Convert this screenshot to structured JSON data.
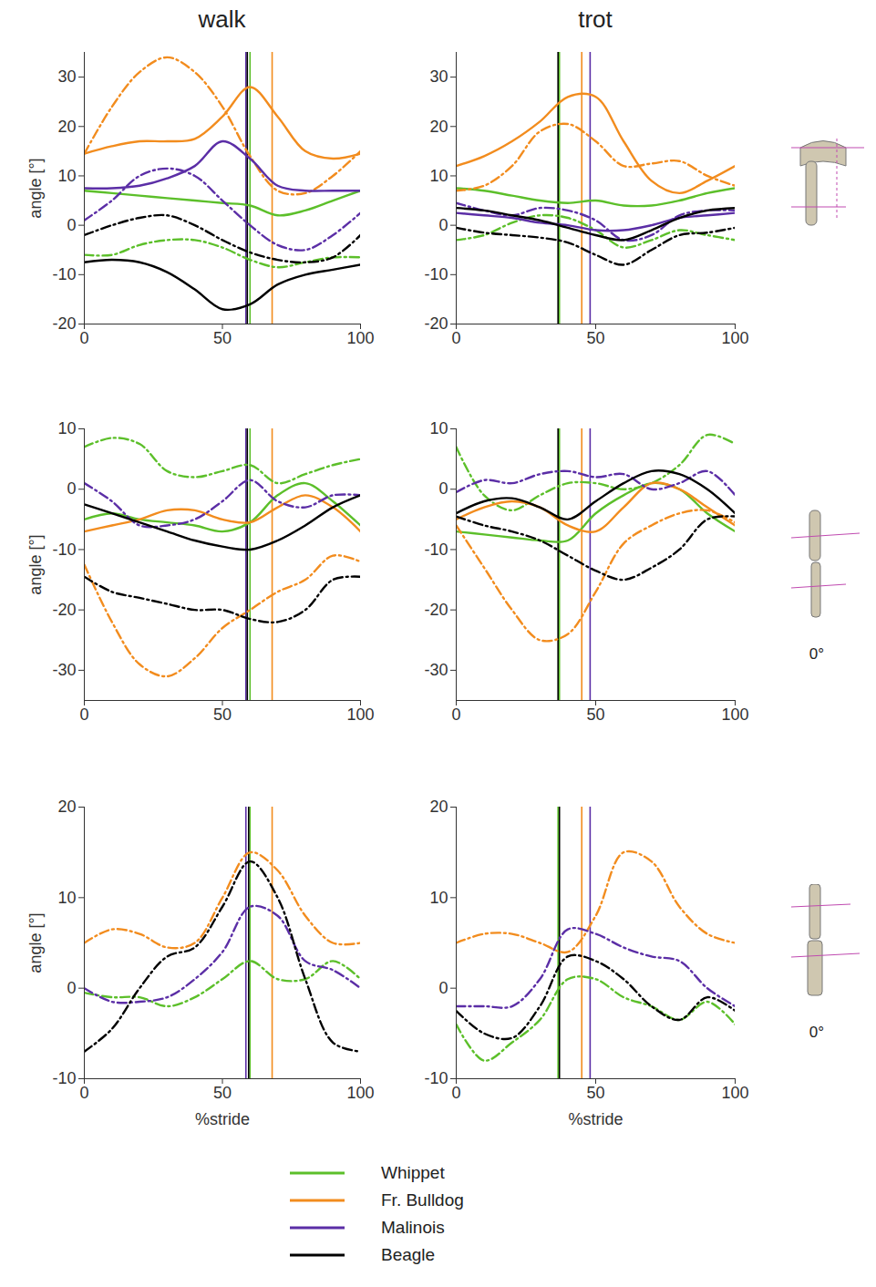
{
  "chart_data": [
    {
      "type": "line",
      "title": "walk",
      "y_label": "angle [°]",
      "legend": "bottom",
      "xlim": [
        0,
        100
      ],
      "xticks": [
        0,
        50,
        100
      ],
      "ylim": [
        -20,
        35
      ],
      "yticks": [
        -20,
        -10,
        0,
        10,
        20,
        30
      ],
      "x": [
        0,
        10,
        20,
        30,
        40,
        50,
        60,
        70,
        80,
        90,
        100
      ],
      "series": [
        {
          "name": "Whippet",
          "color": "#5cbf2a",
          "line_style": "solid",
          "values": [
            7,
            6.5,
            6,
            5.5,
            5,
            4.5,
            4,
            2,
            3,
            5,
            7
          ]
        },
        {
          "name": "Whippet",
          "color": "#5cbf2a",
          "line_style": "dashdot",
          "values": [
            -6,
            -6,
            -4,
            -3,
            -3,
            -4.5,
            -7,
            -8.5,
            -7.5,
            -6.5,
            -6.5
          ]
        },
        {
          "name": "Fr. Bulldog",
          "color": "#f28c1e",
          "line_style": "solid",
          "values": [
            14.5,
            16,
            17,
            17,
            17.5,
            22,
            28,
            22,
            15,
            13.5,
            14.5
          ]
        },
        {
          "name": "Fr. Bulldog",
          "color": "#f28c1e",
          "line_style": "dashdot",
          "values": [
            14.5,
            24,
            31,
            34,
            31,
            24,
            14,
            7,
            6.5,
            10,
            15
          ]
        },
        {
          "name": "Malinois",
          "color": "#5b2ea6",
          "line_style": "solid",
          "values": [
            7.5,
            7.5,
            8,
            9.5,
            12,
            17,
            13.5,
            8,
            7,
            7,
            7
          ]
        },
        {
          "name": "Malinois",
          "color": "#5b2ea6",
          "line_style": "dashdot",
          "values": [
            1,
            5,
            10,
            11.5,
            10,
            5,
            0,
            -4,
            -5,
            -2,
            2.5
          ]
        },
        {
          "name": "Beagle",
          "color": "#000000",
          "line_style": "solid",
          "values": [
            -7.5,
            -7,
            -7.5,
            -9.5,
            -13,
            -17,
            -16,
            -12,
            -10,
            -9,
            -8
          ]
        },
        {
          "name": "Beagle",
          "color": "#000000",
          "line_style": "dashdot",
          "values": [
            -2,
            0,
            1.5,
            2,
            0,
            -3,
            -5.5,
            -7,
            -7.5,
            -6.5,
            -2
          ]
        }
      ],
      "vlines": [
        {
          "name": "Whippet",
          "color": "#5cbf2a",
          "x": 60
        },
        {
          "name": "Fr. Bulldog",
          "color": "#f28c1e",
          "x": 68
        },
        {
          "name": "Malinois",
          "color": "#5b2ea6",
          "x": 58.5
        },
        {
          "name": "Beagle",
          "color": "#000000",
          "x": 59
        }
      ]
    },
    {
      "type": "line",
      "title": "trot",
      "xlim": [
        0,
        100
      ],
      "xticks": [
        0,
        50,
        100
      ],
      "ylim": [
        -20,
        35
      ],
      "yticks": [
        -20,
        -10,
        0,
        10,
        20,
        30
      ],
      "x": [
        0,
        10,
        20,
        30,
        40,
        50,
        60,
        70,
        80,
        90,
        100
      ],
      "series": [
        {
          "name": "Whippet",
          "color": "#5cbf2a",
          "line_style": "solid",
          "values": [
            7.5,
            7,
            6,
            5,
            4.5,
            5,
            4,
            4,
            5,
            6.5,
            7.5
          ]
        },
        {
          "name": "Whippet",
          "color": "#5cbf2a",
          "line_style": "dashdot",
          "values": [
            -3,
            -2,
            0.5,
            2,
            1.5,
            -1,
            -4.5,
            -3,
            -1,
            -2,
            -3
          ]
        },
        {
          "name": "Fr. Bulldog",
          "color": "#f28c1e",
          "line_style": "solid",
          "values": [
            12,
            14,
            17,
            21,
            26,
            26,
            17,
            9,
            6.5,
            9,
            12
          ]
        },
        {
          "name": "Fr. Bulldog",
          "color": "#f28c1e",
          "line_style": "dashdot",
          "values": [
            7,
            8,
            12,
            19,
            20.5,
            17,
            12,
            12.5,
            13,
            10,
            8
          ]
        },
        {
          "name": "Malinois",
          "color": "#5b2ea6",
          "line_style": "solid",
          "values": [
            2.5,
            2,
            1.5,
            0.5,
            0,
            -1,
            -1,
            0,
            1.5,
            2,
            2.5
          ]
        },
        {
          "name": "Malinois",
          "color": "#5b2ea6",
          "line_style": "dashdot",
          "values": [
            4.5,
            3,
            2,
            3.5,
            3,
            1,
            -3,
            -2,
            2,
            3,
            3
          ]
        },
        {
          "name": "Beagle",
          "color": "#000000",
          "line_style": "solid",
          "values": [
            3.5,
            3,
            2,
            1,
            -0.5,
            -2,
            -3,
            -1,
            1.5,
            3,
            3.5
          ]
        },
        {
          "name": "Beagle",
          "color": "#000000",
          "line_style": "dashdot",
          "values": [
            -0.5,
            -1.5,
            -2,
            -2.5,
            -3.5,
            -6,
            -8,
            -5,
            -2,
            -1.5,
            -0.5
          ]
        }
      ],
      "vlines": [
        {
          "name": "Whippet",
          "color": "#5cbf2a",
          "x": 37
        },
        {
          "name": "Fr. Bulldog",
          "color": "#f28c1e",
          "x": 45
        },
        {
          "name": "Malinois",
          "color": "#5b2ea6",
          "x": 48
        },
        {
          "name": "Beagle",
          "color": "#000000",
          "x": 36.5
        }
      ]
    },
    {
      "type": "line",
      "y_label": "angle [°]",
      "xlim": [
        0,
        100
      ],
      "xticks": [
        0,
        50,
        100
      ],
      "ylim": [
        -35,
        10
      ],
      "yticks": [
        -30,
        -20,
        -10,
        0,
        10
      ],
      "x": [
        0,
        10,
        20,
        30,
        40,
        50,
        60,
        70,
        80,
        90,
        100
      ],
      "series": [
        {
          "name": "Whippet",
          "color": "#5cbf2a",
          "line_style": "solid",
          "values": [
            -5,
            -4,
            -5,
            -5.5,
            -6,
            -7,
            -5.5,
            -1,
            1,
            -2,
            -6
          ]
        },
        {
          "name": "Whippet",
          "color": "#5cbf2a",
          "line_style": "dashdot",
          "values": [
            7,
            8.5,
            7.5,
            3,
            2,
            3,
            4,
            1,
            2.5,
            4,
            5
          ]
        },
        {
          "name": "Fr. Bulldog",
          "color": "#f28c1e",
          "line_style": "solid",
          "values": [
            -7,
            -6,
            -5,
            -3.5,
            -3.5,
            -5,
            -5.5,
            -3,
            -1,
            -3,
            -7
          ]
        },
        {
          "name": "Fr. Bulldog",
          "color": "#f28c1e",
          "line_style": "dashdot",
          "values": [
            -12.5,
            -22,
            -29,
            -31,
            -28,
            -23,
            -20,
            -17,
            -15,
            -11,
            -12
          ]
        },
        {
          "name": "Malinois",
          "color": "#5b2ea6",
          "line_style": "dashdot",
          "values": [
            1,
            -2,
            -6,
            -6,
            -5,
            -2,
            1.5,
            -2,
            -3,
            -1,
            -1
          ]
        },
        {
          "name": "Beagle",
          "color": "#000000",
          "line_style": "solid",
          "values": [
            -2.5,
            -4,
            -5.5,
            -7,
            -8.5,
            -9.5,
            -10,
            -8.5,
            -6,
            -3,
            -1
          ]
        },
        {
          "name": "Beagle",
          "color": "#000000",
          "line_style": "dashdot",
          "values": [
            -14.5,
            -17,
            -18,
            -19,
            -20,
            -20,
            -21.5,
            -22,
            -20,
            -15,
            -14.5
          ]
        }
      ],
      "vlines": [
        {
          "name": "Whippet",
          "color": "#5cbf2a",
          "x": 60
        },
        {
          "name": "Fr. Bulldog",
          "color": "#f28c1e",
          "x": 68
        },
        {
          "name": "Malinois",
          "color": "#5b2ea6",
          "x": 58.5
        },
        {
          "name": "Beagle",
          "color": "#000000",
          "x": 59
        }
      ]
    },
    {
      "type": "line",
      "annotation": "0°",
      "xlim": [
        0,
        100
      ],
      "xticks": [
        0,
        50,
        100
      ],
      "ylim": [
        -35,
        10
      ],
      "yticks": [
        -30,
        -20,
        -10,
        0,
        10
      ],
      "x": [
        0,
        10,
        20,
        30,
        40,
        50,
        60,
        70,
        80,
        90,
        100
      ],
      "series": [
        {
          "name": "Whippet",
          "color": "#5cbf2a",
          "line_style": "solid",
          "values": [
            -7,
            -7.5,
            -8,
            -8.5,
            -8.5,
            -4,
            -1,
            1,
            0,
            -4,
            -7
          ]
        },
        {
          "name": "Whippet",
          "color": "#5cbf2a",
          "line_style": "dashdot",
          "values": [
            7,
            -1,
            -3.5,
            -1,
            1,
            1,
            0,
            1,
            4,
            9,
            7.5
          ]
        },
        {
          "name": "Fr. Bulldog",
          "color": "#f28c1e",
          "line_style": "solid",
          "values": [
            -5,
            -3,
            -2,
            -3,
            -6,
            -7,
            -3,
            1,
            0,
            -3,
            -6
          ]
        },
        {
          "name": "Fr. Bulldog",
          "color": "#f28c1e",
          "line_style": "dashdot",
          "values": [
            -6,
            -13,
            -20,
            -25,
            -24,
            -17,
            -9,
            -6,
            -4,
            -3.5,
            -5.5
          ]
        },
        {
          "name": "Malinois",
          "color": "#5b2ea6",
          "line_style": "dashdot",
          "values": [
            -0.5,
            1.5,
            1,
            2.5,
            3,
            2,
            2.5,
            0,
            1,
            3,
            -1
          ]
        },
        {
          "name": "Beagle",
          "color": "#000000",
          "line_style": "solid",
          "values": [
            -4,
            -2,
            -1.5,
            -3,
            -5,
            -2,
            1,
            3,
            2.5,
            0,
            -4
          ]
        },
        {
          "name": "Beagle",
          "color": "#000000",
          "line_style": "dashdot",
          "values": [
            -4.5,
            -6,
            -7,
            -8.5,
            -11,
            -13.5,
            -15,
            -13,
            -10,
            -5,
            -4.5
          ]
        }
      ],
      "vlines": [
        {
          "name": "Whippet",
          "color": "#5cbf2a",
          "x": 37
        },
        {
          "name": "Fr. Bulldog",
          "color": "#f28c1e",
          "x": 45
        },
        {
          "name": "Malinois",
          "color": "#5b2ea6",
          "x": 48
        },
        {
          "name": "Beagle",
          "color": "#000000",
          "x": 36.5
        }
      ]
    },
    {
      "type": "line",
      "y_label": "angle [°]",
      "x_label": "%stride",
      "xlim": [
        0,
        100
      ],
      "xticks": [
        0,
        50,
        100
      ],
      "ylim": [
        -10,
        20
      ],
      "yticks": [
        -10,
        0,
        10,
        20
      ],
      "x": [
        0,
        10,
        20,
        30,
        40,
        50,
        60,
        70,
        80,
        90,
        100
      ],
      "series": [
        {
          "name": "Whippet",
          "color": "#5cbf2a",
          "line_style": "dashdot",
          "values": [
            -0.5,
            -1,
            -1,
            -2,
            -1,
            1,
            3,
            1,
            1,
            3,
            1
          ]
        },
        {
          "name": "Fr. Bulldog",
          "color": "#f28c1e",
          "line_style": "dashdot",
          "values": [
            5,
            6.5,
            6,
            4.5,
            5,
            10,
            15,
            13,
            8,
            5,
            5
          ]
        },
        {
          "name": "Malinois",
          "color": "#5b2ea6",
          "line_style": "dashdot",
          "values": [
            0,
            -1.5,
            -1.5,
            -1,
            1,
            4,
            9,
            8,
            3,
            2,
            0
          ]
        },
        {
          "name": "Beagle",
          "color": "#000000",
          "line_style": "dashdot",
          "values": [
            -7,
            -4.5,
            0,
            3.5,
            4.5,
            9,
            14,
            10,
            1,
            -6,
            -7
          ]
        }
      ],
      "vlines": [
        {
          "name": "Whippet",
          "color": "#5cbf2a",
          "x": 60
        },
        {
          "name": "Fr. Bulldog",
          "color": "#f28c1e",
          "x": 68
        },
        {
          "name": "Malinois",
          "color": "#5b2ea6",
          "x": 58.5
        },
        {
          "name": "Beagle",
          "color": "#000000",
          "x": 59.5
        }
      ]
    },
    {
      "type": "line",
      "x_label": "%stride",
      "annotation": "0°",
      "xlim": [
        0,
        100
      ],
      "xticks": [
        0,
        50,
        100
      ],
      "ylim": [
        -10,
        20
      ],
      "yticks": [
        -10,
        0,
        10,
        20
      ],
      "x": [
        0,
        10,
        20,
        30,
        40,
        50,
        60,
        70,
        80,
        90,
        100
      ],
      "series": [
        {
          "name": "Whippet",
          "color": "#5cbf2a",
          "line_style": "dashdot",
          "values": [
            -4,
            -8,
            -6,
            -3.5,
            1,
            1,
            -1,
            -2,
            -3.5,
            -1.5,
            -4
          ]
        },
        {
          "name": "Fr. Bulldog",
          "color": "#f28c1e",
          "line_style": "dashdot",
          "values": [
            5,
            6,
            6,
            5,
            4,
            8,
            15,
            14,
            9,
            6,
            5
          ]
        },
        {
          "name": "Malinois",
          "color": "#5b2ea6",
          "line_style": "dashdot",
          "values": [
            -2,
            -2,
            -2,
            1,
            6.5,
            6,
            4.5,
            3.5,
            3,
            0,
            -2
          ]
        },
        {
          "name": "Beagle",
          "color": "#000000",
          "line_style": "dashdot",
          "values": [
            -2.5,
            -5,
            -5.5,
            -2,
            3.5,
            3,
            1,
            -2,
            -3.5,
            -1,
            -2.5
          ]
        }
      ],
      "vlines": [
        {
          "name": "Whippet",
          "color": "#5cbf2a",
          "x": 36.5
        },
        {
          "name": "Fr. Bulldog",
          "color": "#f28c1e",
          "x": 45
        },
        {
          "name": "Malinois",
          "color": "#5b2ea6",
          "x": 48
        },
        {
          "name": "Beagle",
          "color": "#000000",
          "x": 37
        }
      ]
    }
  ]
}
